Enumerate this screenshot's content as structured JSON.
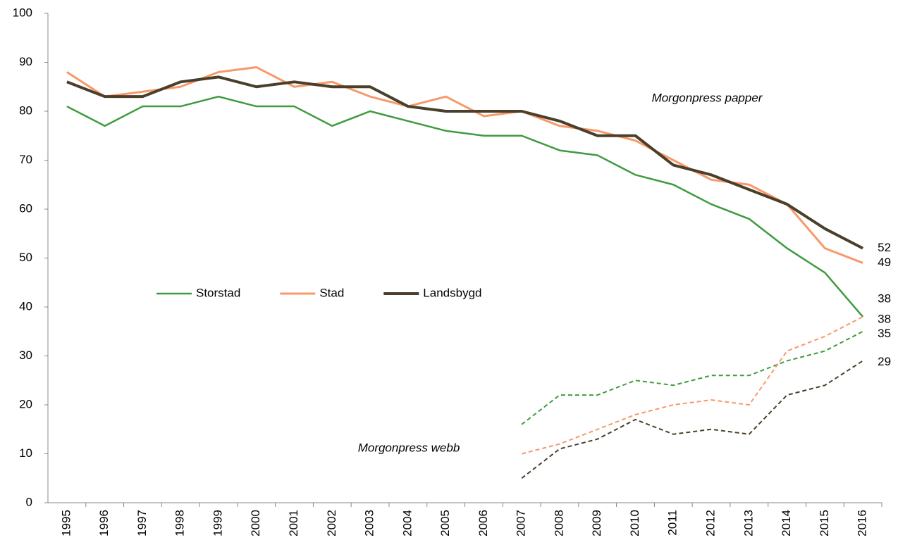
{
  "chart_data": {
    "type": "line",
    "categories": [
      "1995",
      "1996",
      "1997",
      "1998",
      "1999",
      "2000",
      "2001",
      "2002",
      "2003",
      "2004",
      "2005",
      "2006",
      "2007",
      "2008",
      "2009",
      "2010",
      "2011",
      "2012",
      "2013",
      "2014",
      "2015",
      "2016"
    ],
    "series": [
      {
        "name": "Storstad",
        "color": "#3f9b3f",
        "width": 2.5,
        "dashed": false,
        "values": [
          81,
          77,
          81,
          81,
          83,
          81,
          81,
          77,
          80,
          78,
          76,
          75,
          75,
          72,
          71,
          67,
          65,
          61,
          58,
          52,
          47,
          38
        ]
      },
      {
        "name": "Stad",
        "color": "#f7996a",
        "width": 3,
        "dashed": false,
        "values": [
          88,
          83,
          84,
          85,
          88,
          89,
          85,
          86,
          83,
          81,
          83,
          79,
          80,
          77,
          76,
          74,
          70,
          66,
          65,
          61,
          52,
          49
        ]
      },
      {
        "name": "Landsbygd",
        "color": "#4a3f2a",
        "width": 4,
        "dashed": false,
        "values": [
          86,
          83,
          83,
          86,
          87,
          85,
          86,
          85,
          85,
          81,
          80,
          80,
          80,
          78,
          75,
          75,
          69,
          67,
          64,
          61,
          56,
          52
        ]
      },
      {
        "color": "#3f9b3f",
        "width": 2,
        "dashed": true,
        "values": [
          null,
          null,
          null,
          null,
          null,
          null,
          null,
          null,
          null,
          null,
          null,
          null,
          16,
          22,
          22,
          25,
          24,
          26,
          26,
          29,
          31,
          35
        ]
      },
      {
        "color": "#f7996a",
        "width": 2,
        "dashed": true,
        "values": [
          null,
          null,
          null,
          null,
          null,
          null,
          null,
          null,
          null,
          null,
          null,
          null,
          10,
          12,
          15,
          18,
          20,
          21,
          20,
          31,
          34,
          38
        ]
      },
      {
        "color": "#4a3f2a",
        "width": 2,
        "dashed": true,
        "values": [
          null,
          null,
          null,
          null,
          null,
          null,
          null,
          null,
          null,
          null,
          null,
          null,
          5,
          11,
          13,
          17,
          14,
          15,
          14,
          22,
          24,
          29
        ]
      }
    ],
    "annotations": [
      "Morgonpress papper",
      "Morgonpress webb"
    ],
    "label_last": true,
    "ylim": [
      0,
      100
    ],
    "yticks": [
      0,
      10,
      20,
      30,
      40,
      50,
      60,
      70,
      80,
      90,
      100
    ],
    "grid": false
  }
}
